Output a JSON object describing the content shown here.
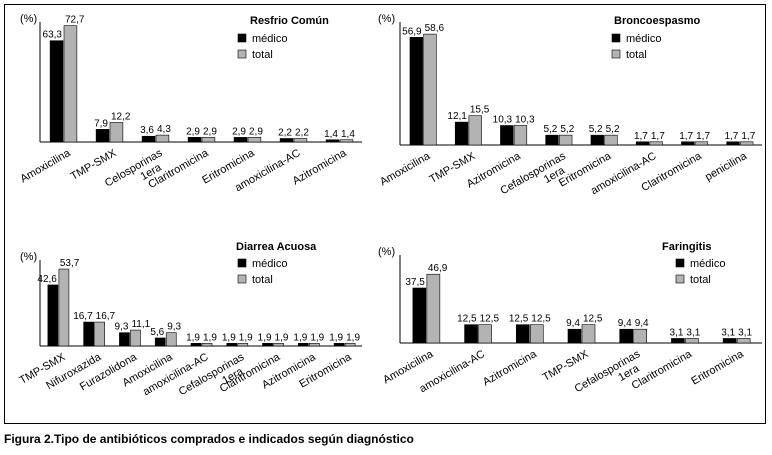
{
  "caption": "Figura 2.Tipo de antibióticos comprados e indicados según diagnóstico",
  "colors": {
    "medico": "#000000",
    "total": "#b3b3b3"
  },
  "chart_data": [
    {
      "type": "bar",
      "title": "Resfrio Común",
      "ylabel": "(%)",
      "legend_position": "top-right",
      "ylim": [
        0,
        75
      ],
      "categories": [
        "Amoxicilina",
        "TMP-SMX",
        "Celosporinas 1era",
        "Claritromicina",
        "Eritromicina",
        "amoxicilina-AC",
        "Azitromicina"
      ],
      "series": [
        {
          "name": "médico",
          "values": [
            63.3,
            7.9,
            3.6,
            2.9,
            2.9,
            2.2,
            1.4
          ],
          "labels": [
            "63,3",
            "7,9",
            "3,6",
            "2,9",
            "2,9",
            "2,2",
            "1,4"
          ]
        },
        {
          "name": "total",
          "values": [
            72.7,
            12.2,
            4.3,
            2.9,
            2.9,
            2.2,
            1.4
          ],
          "labels": [
            "72,7",
            "12,2",
            "4,3",
            "2,9",
            "2,9",
            "2,2",
            "1,4"
          ]
        }
      ]
    },
    {
      "type": "bar",
      "title": "Broncoespasmo",
      "ylabel": "(%)",
      "legend_position": "top-right",
      "ylim": [
        0,
        65
      ],
      "categories": [
        "Amoxicilina",
        "TMP-SMX",
        "Azitromicina",
        "Cefalosporinas 1era",
        "Eritromicina",
        "amoxicilina-AC",
        "Claritromicina",
        "penicilina"
      ],
      "series": [
        {
          "name": "médico",
          "values": [
            56.9,
            12.1,
            10.3,
            5.2,
            5.2,
            1.7,
            1.7,
            1.7
          ],
          "labels": [
            "56,9",
            "12,1",
            "10,3",
            "5,2",
            "5,2",
            "1,7",
            "1,7",
            "1,7"
          ]
        },
        {
          "name": "total",
          "values": [
            58.6,
            15.5,
            10.3,
            5.2,
            5.2,
            1.7,
            1.7,
            1.7
          ],
          "labels": [
            "58,6",
            "15,5",
            "10,3",
            "5,2",
            "5,2",
            "1,7",
            "1,7",
            "1,7"
          ]
        }
      ]
    },
    {
      "type": "bar",
      "title": "Diarrea Acuosa",
      "ylabel": "(%)",
      "legend_position": "top-right",
      "ylim": [
        0,
        60
      ],
      "categories": [
        "TMP-SMX",
        "Nifuroxazida",
        "Furazolidona",
        "Amoxicilina",
        "amoxicilina-AC",
        "Cefalosporinas 1era",
        "Claritromicina",
        "Azitromicina",
        "Eritromicina"
      ],
      "series": [
        {
          "name": "médico",
          "values": [
            42.6,
            16.7,
            9.3,
            5.6,
            1.9,
            1.9,
            1.9,
            1.9,
            1.9
          ],
          "labels": [
            "42,6",
            "16,7",
            "9,3",
            "5,6",
            "1,9",
            "1,9",
            "1,9",
            "1,9",
            "1,9"
          ]
        },
        {
          "name": "total",
          "values": [
            53.7,
            16.7,
            11.1,
            9.3,
            1.9,
            1.9,
            1.9,
            1.9,
            1.9
          ],
          "labels": [
            "53,7",
            "16,7",
            "11,1",
            "9,3",
            "1,9",
            "1,9",
            "1,9",
            "1,9",
            "1,9"
          ]
        }
      ]
    },
    {
      "type": "bar",
      "title": "Faringitis",
      "ylabel": "(%)",
      "legend_position": "top-right",
      "ylim": [
        0,
        60
      ],
      "categories": [
        "Amoxicilina",
        "amoxicilina-AC",
        "Azitromicina",
        "TMP-SMX",
        "Cefalosporinas 1era",
        "Claritromicina",
        "Eritromicina"
      ],
      "series": [
        {
          "name": "médico",
          "values": [
            37.5,
            12.5,
            12.5,
            9.4,
            9.4,
            3.1,
            3.1
          ],
          "labels": [
            "37,5",
            "12,5",
            "12,5",
            "9,4",
            "9,4",
            "3,1",
            "3,1"
          ]
        },
        {
          "name": "total",
          "values": [
            46.9,
            12.5,
            12.5,
            12.5,
            9.4,
            3.1,
            3.1
          ],
          "labels": [
            "46,9",
            "12,5",
            "12,5",
            "12,5",
            "9,4",
            "3,1",
            "3,1"
          ]
        }
      ]
    }
  ]
}
